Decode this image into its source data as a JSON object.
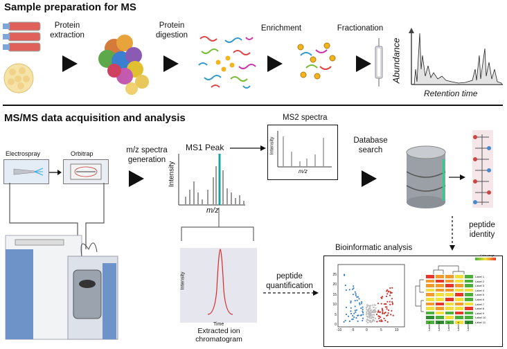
{
  "section1": {
    "title": "Sample preparation for MS",
    "steps": [
      "Protein extraction",
      "Protein digestion",
      "Enrichment",
      "Fractionation"
    ],
    "chromatogram": {
      "y_label": "Abundance",
      "x_label": "Retention time"
    }
  },
  "section2": {
    "title": "MS/MS data acquisition and analysis",
    "electrospray": "Electrospray",
    "orbitrap": "Orbitrap",
    "spectra_generation": "m/z spectra generation",
    "ms1": {
      "title": "MS1 Peak",
      "y_label": "Intensity",
      "x_label": "m/z"
    },
    "ms2": {
      "title": "MS2 spectra",
      "y_label": "Intensity",
      "x_label": "m/z"
    },
    "database_search": "Database search",
    "peptide_identity": "peptide identity",
    "xic": {
      "y_label": "Intensity",
      "x_label": "Time",
      "caption": "Extracted ion chromatogram"
    },
    "peptide_quantification": "peptide quantification",
    "bioinformatic": "Bioinformatic analysis",
    "volcano": {
      "x_ticks": [
        "-10",
        "-5",
        "0",
        "5",
        "10"
      ],
      "y_ticks": [
        "0",
        "5",
        "10",
        "15",
        "20",
        "25"
      ]
    },
    "heatmap": {
      "legend_title": "Color range",
      "row_labels": [
        "Label 1",
        "Label 2",
        "Label 3",
        "Label 4",
        "Label 5",
        "Label 6",
        "Label 7",
        "Label 8",
        "Label 9",
        "Label 10",
        "Label 11"
      ],
      "col_labels": [
        "Label 1",
        "Label 2",
        "Label 3",
        "Label 4",
        "Label 5"
      ],
      "colors": {
        "red": "#e8352a",
        "orange": "#f39a2b",
        "yellow": "#f2e03a",
        "green": "#4caf3a",
        "darkgreen": "#2e8b2e"
      }
    }
  }
}
